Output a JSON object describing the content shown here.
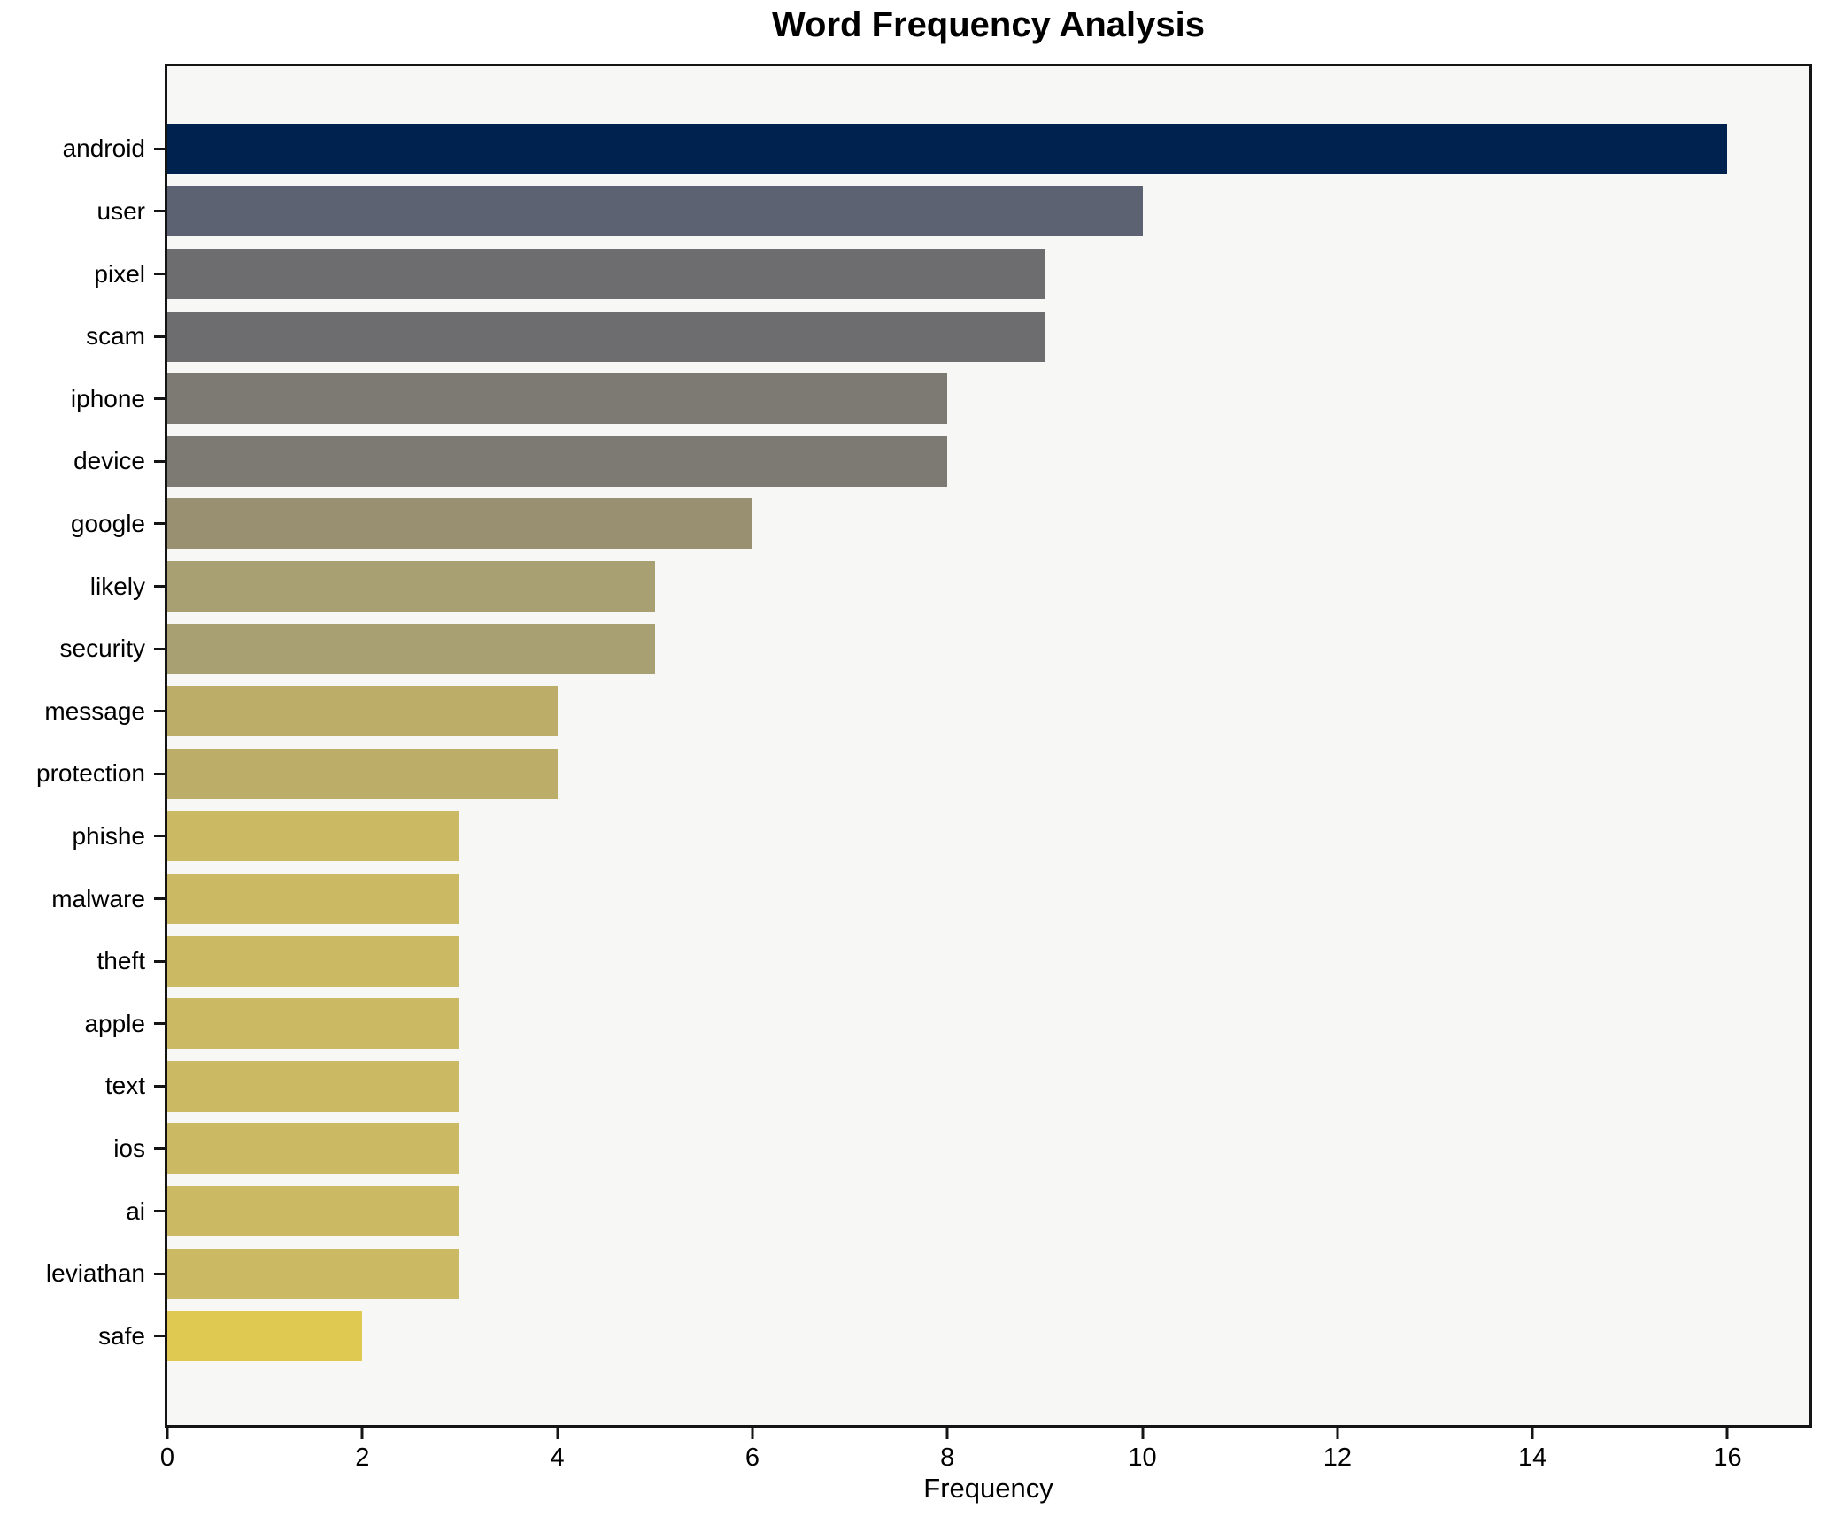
{
  "chart_data": {
    "type": "bar",
    "orientation": "horizontal",
    "title": "Word Frequency Analysis",
    "xlabel": "Frequency",
    "ylabel": "",
    "xlim": [
      0,
      16.84
    ],
    "x_ticks": [
      0,
      2,
      4,
      6,
      8,
      10,
      12,
      14,
      16
    ],
    "grid": false,
    "legend": false,
    "plot_background": "#f7f7f5",
    "spine_color": "#141414",
    "categories": [
      "android",
      "user",
      "pixel",
      "scam",
      "iphone",
      "device",
      "google",
      "likely",
      "security",
      "message",
      "protection",
      "phishe",
      "malware",
      "theft",
      "apple",
      "text",
      "ios",
      "ai",
      "leviathan",
      "safe"
    ],
    "values": [
      16,
      10,
      9,
      9,
      8,
      8,
      6,
      5,
      5,
      4,
      4,
      3,
      3,
      3,
      3,
      3,
      3,
      3,
      3,
      2
    ],
    "bar_colors": [
      "#00224e",
      "#5d6272",
      "#6d6d70",
      "#6d6d70",
      "#7c7a72",
      "#7c7a72",
      "#999071",
      "#a89f73",
      "#a89f73",
      "#bcae68",
      "#bcae68",
      "#ccb963",
      "#ccb963",
      "#ccb963",
      "#ccb963",
      "#ccb963",
      "#ccb963",
      "#ccb963",
      "#ccb963",
      "#e0c951"
    ]
  }
}
